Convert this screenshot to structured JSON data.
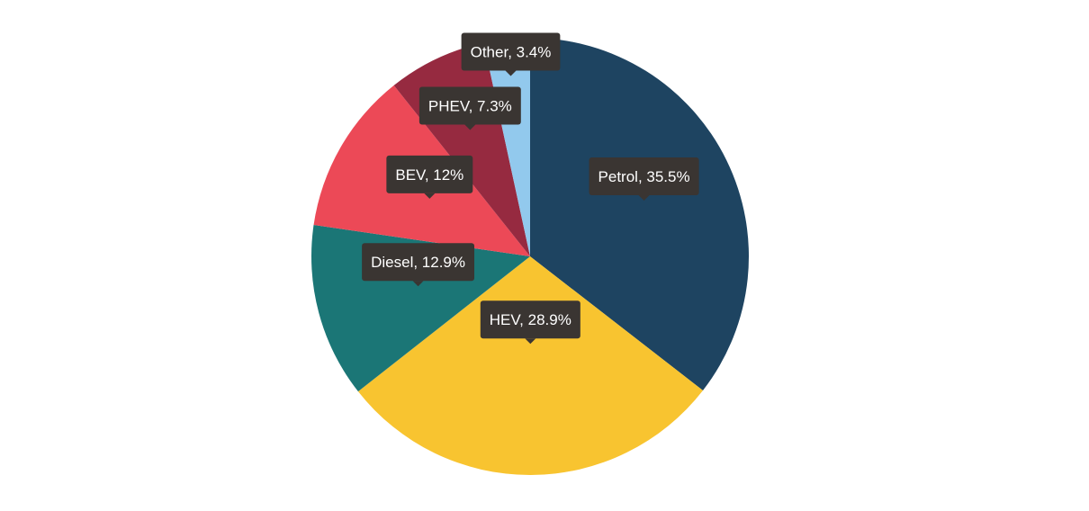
{
  "chart_data": {
    "type": "pie",
    "title": "",
    "slices": [
      {
        "label": "Petrol",
        "value": 35.5,
        "display": "Petrol, 35.5%",
        "color": "#1e4461"
      },
      {
        "label": "HEV",
        "value": 28.9,
        "display": "HEV, 28.9%",
        "color": "#f8c430"
      },
      {
        "label": "Diesel",
        "value": 12.9,
        "display": "Diesel, 12.9%",
        "color": "#1b7676"
      },
      {
        "label": "BEV",
        "value": 12,
        "display": "BEV, 12%",
        "color": "#ec4957"
      },
      {
        "label": "PHEV",
        "value": 7.3,
        "display": "PHEV, 7.3%",
        "color": "#962a40"
      },
      {
        "label": "Other",
        "value": 3.4,
        "display": "Other, 3.4%",
        "color": "#92c9ed"
      }
    ],
    "label_style": {
      "background": "#3a3532",
      "text_color": "#ffffff"
    }
  }
}
